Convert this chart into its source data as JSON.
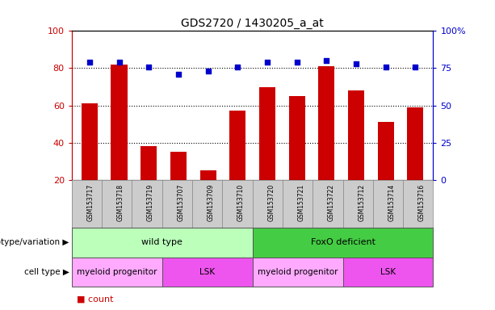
{
  "title": "GDS2720 / 1430205_a_at",
  "samples": [
    "GSM153717",
    "GSM153718",
    "GSM153719",
    "GSM153707",
    "GSM153709",
    "GSM153710",
    "GSM153720",
    "GSM153721",
    "GSM153722",
    "GSM153712",
    "GSM153714",
    "GSM153716"
  ],
  "counts": [
    61,
    82,
    38,
    35,
    25,
    57,
    70,
    65,
    81,
    68,
    51,
    59
  ],
  "percentiles": [
    79,
    79,
    76,
    71,
    73,
    76,
    79,
    79,
    80,
    78,
    76,
    76
  ],
  "ylim_left": [
    20,
    100
  ],
  "ylim_right": [
    0,
    100
  ],
  "yticks_left": [
    20,
    40,
    60,
    80,
    100
  ],
  "yticks_right": [
    0,
    25,
    50,
    75,
    100
  ],
  "ytick_labels_right": [
    "0",
    "25",
    "50",
    "75",
    "100%"
  ],
  "bar_color": "#cc0000",
  "dot_color": "#0000cc",
  "grid_color": "#000000",
  "plot_bg_color": "#ffffff",
  "label_bg_color": "#cccccc",
  "genotype_groups": [
    {
      "label": "wild type",
      "start": 0,
      "end": 6,
      "color": "#bbffbb"
    },
    {
      "label": "FoxO deficient",
      "start": 6,
      "end": 12,
      "color": "#44cc44"
    }
  ],
  "cell_type_groups": [
    {
      "label": "myeloid progenitor",
      "start": 0,
      "end": 3,
      "color": "#ffaaff"
    },
    {
      "label": "LSK",
      "start": 3,
      "end": 6,
      "color": "#ee55ee"
    },
    {
      "label": "myeloid progenitor",
      "start": 6,
      "end": 9,
      "color": "#ffaaff"
    },
    {
      "label": "LSK",
      "start": 9,
      "end": 12,
      "color": "#ee55ee"
    }
  ],
  "left_axis_color": "#cc0000",
  "right_axis_color": "#0000cc",
  "bar_width": 0.55,
  "xlim": [
    -0.6,
    11.6
  ]
}
